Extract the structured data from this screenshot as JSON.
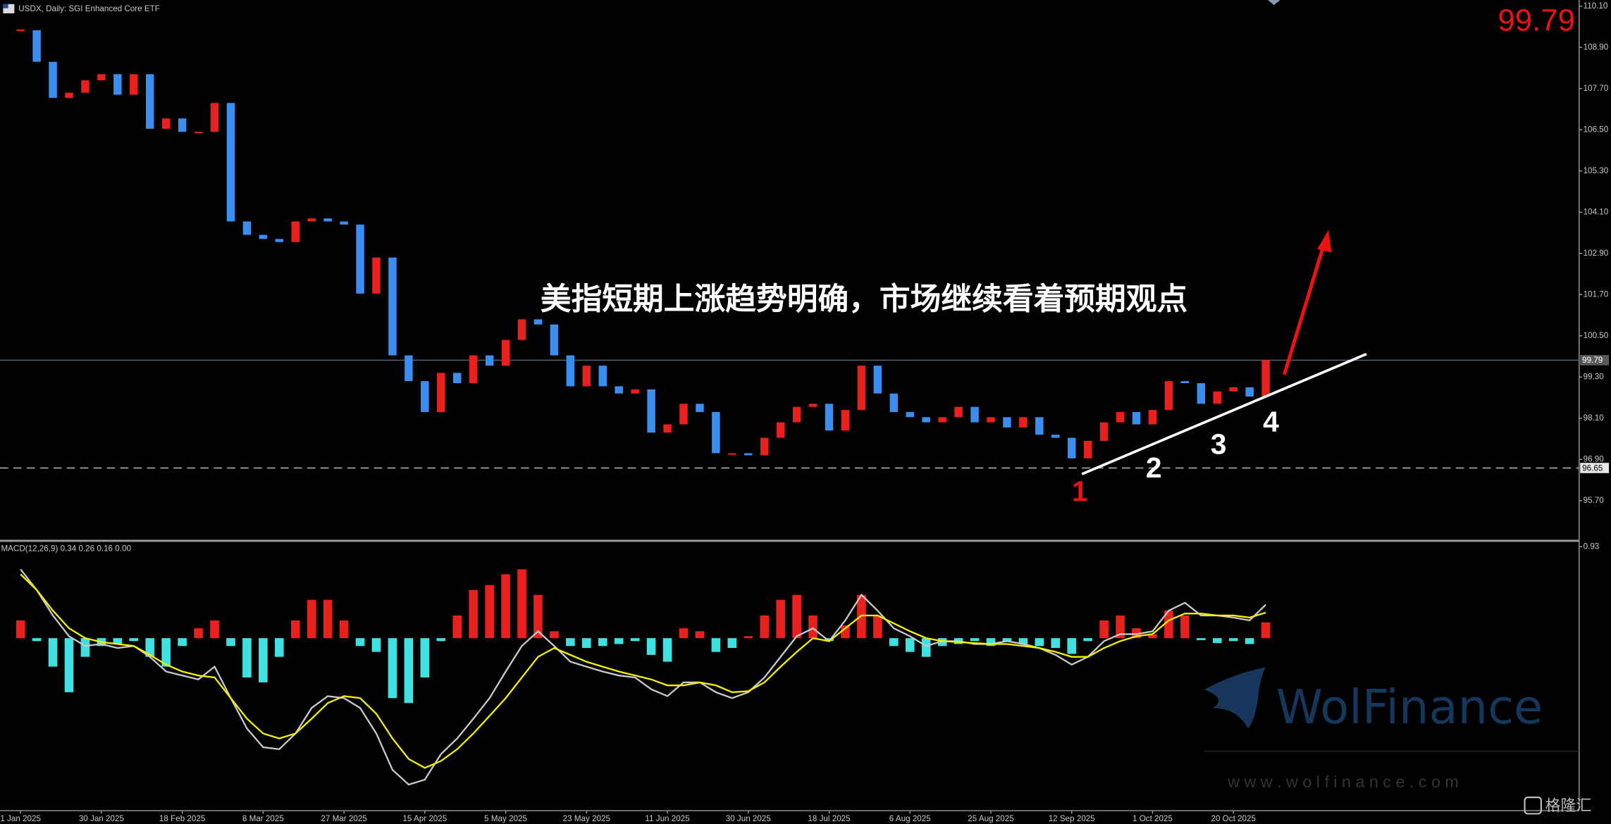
{
  "header": "USDX, Daily: SGI Enhanced Core ETF",
  "watermark": {
    "brand": "WolFinance",
    "url": "w w w . w o l f i n a n c e . c o m",
    "logo": "格隆汇"
  },
  "chart_data": [
    {
      "type": "candlestick",
      "categories": [
        "1 Jan 2025",
        null,
        null,
        null,
        null,
        "30 Jan 2025",
        null,
        null,
        null,
        null,
        "18 Feb 2025",
        null,
        null,
        null,
        null,
        "8 Mar 2025",
        null,
        null,
        null,
        null,
        "27 Mar 2025",
        null,
        null,
        null,
        null,
        "15 Apr 2025",
        null,
        null,
        null,
        null,
        "5 May 2025",
        null,
        null,
        null,
        null,
        "23 May 2025",
        null,
        null,
        null,
        null,
        "11 Jun 2025",
        null,
        null,
        null,
        null,
        "30 Jun 2025",
        null,
        null,
        null,
        null,
        "18 Jul 2025",
        null,
        null,
        null,
        null,
        "6 Aug 2025",
        null,
        null,
        null,
        null,
        "25 Aug 2025",
        null,
        null,
        null,
        null,
        "12 Sep 2025",
        null,
        null,
        null,
        null,
        "1 Oct 2025",
        null,
        null,
        null,
        null,
        "20 Oct 2025",
        null,
        null
      ],
      "close": [
        109.4,
        108.48,
        107.43,
        107.58,
        107.94,
        108.12,
        107.52,
        108.12,
        106.53,
        106.83,
        106.44,
        106.44,
        107.28,
        103.83,
        103.44,
        103.32,
        103.23,
        103.83,
        103.92,
        103.83,
        103.74,
        101.73,
        102.78,
        99.93,
        99.18,
        98.28,
        99.42,
        99.12,
        99.93,
        99.63,
        100.38,
        100.98,
        100.83,
        99.93,
        99.03,
        99.63,
        99.03,
        98.82,
        98.94,
        97.68,
        97.92,
        98.52,
        98.28,
        97.08,
        97.08,
        97.02,
        97.53,
        97.98,
        98.43,
        98.52,
        97.74,
        98.34,
        99.63,
        98.82,
        98.28,
        98.13,
        97.98,
        98.13,
        98.43,
        97.98,
        98.13,
        97.83,
        98.13,
        97.62,
        97.53,
        96.93,
        97.44,
        97.98,
        98.28,
        97.92,
        98.34,
        99.18,
        99.12,
        98.52,
        98.88,
        99.0,
        98.73,
        99.79
      ],
      "up_color": "#e8201e",
      "down_color": "#3a8ef0",
      "ylim": [
        94.53,
        110.28
      ],
      "yticks": [
        {
          "value": 110.1,
          "label": "110.10"
        },
        {
          "value": 108.9,
          "label": "108.90"
        },
        {
          "value": 107.7,
          "label": "107.70"
        },
        {
          "value": 106.5,
          "label": "106.50"
        },
        {
          "value": 105.3,
          "label": "105.30"
        },
        {
          "value": 104.1,
          "label": "104.10"
        },
        {
          "value": 102.9,
          "label": "102.90"
        },
        {
          "value": 101.7,
          "label": "101.70"
        },
        {
          "value": 100.5,
          "label": "100.50"
        },
        {
          "value": 99.3,
          "label": "99.30"
        },
        {
          "value": 98.1,
          "label": "98.10"
        },
        {
          "value": 96.9,
          "label": "96.90"
        },
        {
          "value": 95.7,
          "label": "95.70"
        }
      ],
      "price_lines": [
        {
          "value": 99.79,
          "label": "99.79",
          "style": "solid"
        },
        {
          "value": 96.65,
          "label": "96.65",
          "style": "dashed"
        }
      ],
      "annotations": {
        "current_price": "99.79",
        "headline": "美指短期上涨趋势明确，市场继续看着预期观点",
        "points": [
          "1",
          "2",
          "3",
          "4"
        ]
      }
    },
    {
      "type": "macd",
      "title": "MACD(12,26,9) 0.34 0.26 0.16 0.00",
      "histogram": [
        0.18,
        -0.03,
        -0.29,
        -0.55,
        -0.19,
        -0.08,
        -0.06,
        -0.03,
        -0.19,
        -0.29,
        -0.08,
        0.1,
        0.18,
        -0.08,
        -0.4,
        -0.45,
        -0.19,
        0.18,
        0.39,
        0.39,
        0.18,
        -0.08,
        -0.14,
        -0.61,
        -0.66,
        -0.4,
        -0.03,
        0.23,
        0.49,
        0.54,
        0.65,
        0.7,
        0.44,
        0.07,
        -0.08,
        -0.1,
        -0.08,
        -0.06,
        -0.03,
        -0.17,
        -0.24,
        0.1,
        0.07,
        -0.14,
        -0.1,
        0.02,
        0.23,
        0.39,
        0.44,
        0.23,
        -0.03,
        0.13,
        0.44,
        0.23,
        -0.08,
        -0.14,
        -0.19,
        -0.08,
        -0.06,
        -0.03,
        -0.08,
        -0.03,
        -0.06,
        -0.08,
        -0.1,
        -0.16,
        -0.03,
        0.18,
        0.23,
        0.1,
        0.04,
        0.28,
        0.23,
        -0.02,
        -0.05,
        -0.03,
        -0.06,
        0.16
      ],
      "macd": [
        0.7,
        0.49,
        0.23,
        0.02,
        -0.08,
        -0.06,
        -0.1,
        -0.08,
        -0.19,
        -0.34,
        -0.38,
        -0.42,
        -0.29,
        -0.61,
        -0.92,
        -1.11,
        -1.13,
        -0.97,
        -0.71,
        -0.59,
        -0.61,
        -0.71,
        -0.97,
        -1.34,
        -1.49,
        -1.44,
        -1.18,
        -1.02,
        -0.82,
        -0.61,
        -0.34,
        -0.08,
        0.07,
        -0.08,
        -0.24,
        -0.29,
        -0.34,
        -0.38,
        -0.4,
        -0.52,
        -0.59,
        -0.45,
        -0.45,
        -0.55,
        -0.61,
        -0.55,
        -0.4,
        -0.19,
        0.02,
        0.1,
        -0.03,
        0.18,
        0.44,
        0.28,
        0.1,
        0.02,
        -0.08,
        -0.03,
        -0.03,
        -0.06,
        -0.06,
        -0.03,
        -0.06,
        -0.1,
        -0.17,
        -0.27,
        -0.19,
        -0.03,
        0.04,
        0.04,
        0.07,
        0.28,
        0.36,
        0.23,
        0.23,
        0.21,
        0.18,
        0.34
      ],
      "signal": [
        0.65,
        0.49,
        0.28,
        0.1,
        0.0,
        -0.04,
        -0.06,
        -0.08,
        -0.17,
        -0.27,
        -0.34,
        -0.38,
        -0.4,
        -0.61,
        -0.82,
        -0.97,
        -1.02,
        -0.97,
        -0.82,
        -0.66,
        -0.59,
        -0.61,
        -0.77,
        -1.02,
        -1.23,
        -1.32,
        -1.25,
        -1.13,
        -0.97,
        -0.79,
        -0.61,
        -0.4,
        -0.19,
        -0.1,
        -0.17,
        -0.24,
        -0.29,
        -0.34,
        -0.38,
        -0.42,
        -0.48,
        -0.48,
        -0.45,
        -0.48,
        -0.55,
        -0.54,
        -0.45,
        -0.29,
        -0.14,
        0.0,
        -0.03,
        0.1,
        0.23,
        0.23,
        0.15,
        0.07,
        0.0,
        -0.03,
        -0.04,
        -0.05,
        -0.06,
        -0.06,
        -0.08,
        -0.1,
        -0.14,
        -0.19,
        -0.19,
        -0.1,
        -0.03,
        0.02,
        0.04,
        0.18,
        0.25,
        0.25,
        0.23,
        0.23,
        0.21,
        0.26
      ],
      "colors": {
        "positive": "#e8201e",
        "negative": "#3ee0e0",
        "macd": "#c8c8c8",
        "signal": "#f4f000"
      },
      "ylim": [
        -1.755,
        0.98
      ],
      "yticks": [
        0.93
      ]
    }
  ]
}
